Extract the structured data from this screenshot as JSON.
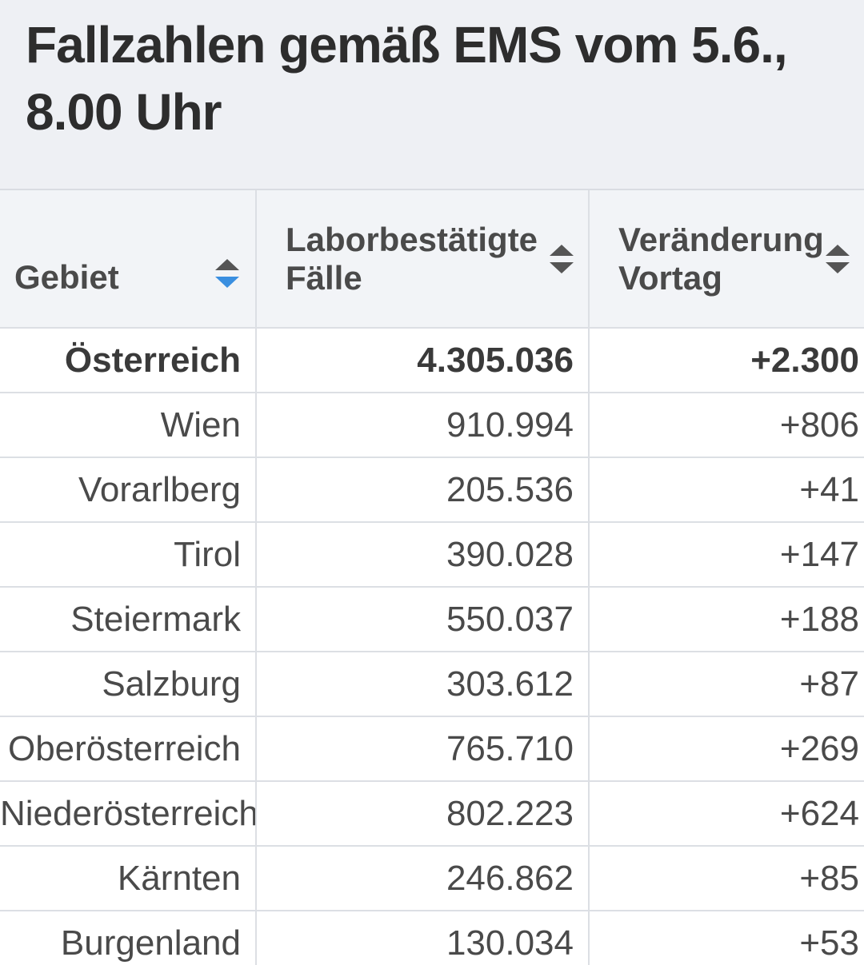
{
  "title": "Fallzahlen gemäß EMS vom 5.6., 8.00 Uhr",
  "columns": [
    {
      "label": "Gebiet",
      "sort_state": "descending"
    },
    {
      "label": "Laborbestätigte Fälle",
      "sort_state": "none"
    },
    {
      "label": "Veränderung Vortag",
      "sort_state": "none"
    }
  ],
  "rows": [
    {
      "region": "Österreich",
      "cases": "4.305.036",
      "change": "+2.300"
    },
    {
      "region": "Wien",
      "cases": "910.994",
      "change": "+806"
    },
    {
      "region": "Vorarlberg",
      "cases": "205.536",
      "change": "+41"
    },
    {
      "region": "Tirol",
      "cases": "390.028",
      "change": "+147"
    },
    {
      "region": "Steiermark",
      "cases": "550.037",
      "change": "+188"
    },
    {
      "region": "Salzburg",
      "cases": "303.612",
      "change": "+87"
    },
    {
      "region": "Oberösterreich",
      "cases": "765.710",
      "change": "+269"
    },
    {
      "region": "Niederösterreich",
      "cases": "802.223",
      "change": "+624"
    },
    {
      "region": "Kärnten",
      "cases": "246.862",
      "change": "+85"
    },
    {
      "region": "Burgenland",
      "cases": "130.034",
      "change": "+53"
    }
  ],
  "colors": {
    "header_bg": "#eef0f4",
    "text": "#4a4a4a",
    "sort_active": "#3a8fe0",
    "border": "#dcdfe4"
  },
  "icons": [
    "sort-arrows-icon"
  ]
}
